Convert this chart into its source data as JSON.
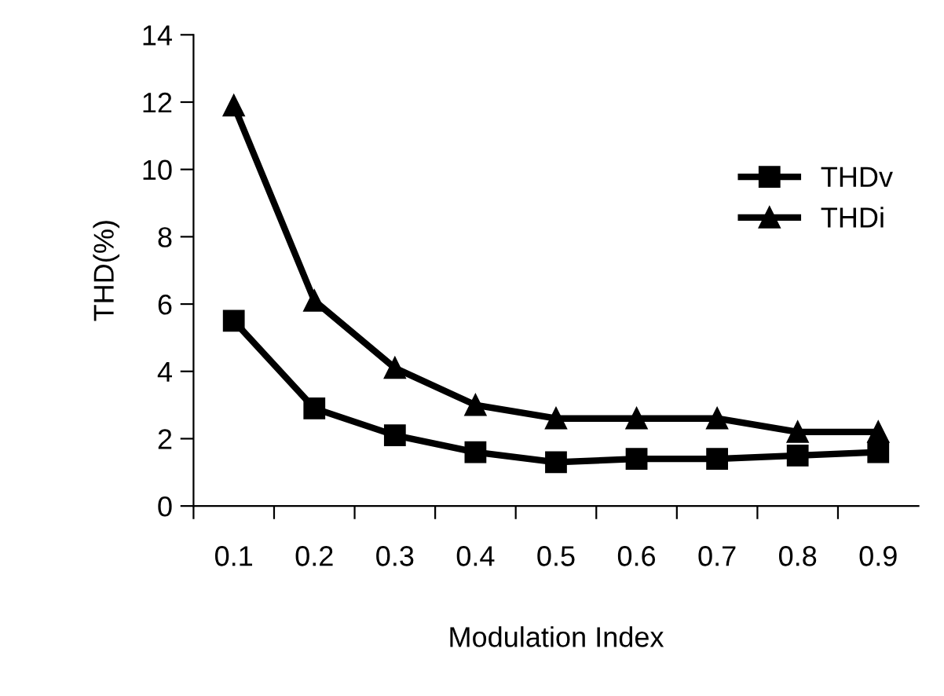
{
  "chart_data": {
    "type": "line",
    "xlabel": "Modulation Index",
    "ylabel": "THD(%)",
    "categories": [
      "0.1",
      "0.2",
      "0.3",
      "0.4",
      "0.5",
      "0.6",
      "0.7",
      "0.8",
      "0.9"
    ],
    "ylim": [
      0,
      14
    ],
    "yticks": [
      0,
      2,
      4,
      6,
      8,
      10,
      12,
      14
    ],
    "grid": false,
    "legend": "center right",
    "line_style": "solid",
    "series": [
      {
        "name": "THDv",
        "color": "#000000",
        "marker": "square",
        "values": [
          5.5,
          2.9,
          2.1,
          1.6,
          1.3,
          1.4,
          1.4,
          1.5,
          1.6
        ]
      },
      {
        "name": "THDi",
        "color": "#000000",
        "marker": "triangle",
        "values": [
          11.9,
          6.1,
          4.1,
          3.0,
          2.6,
          2.6,
          2.6,
          2.2,
          2.2
        ]
      }
    ]
  }
}
